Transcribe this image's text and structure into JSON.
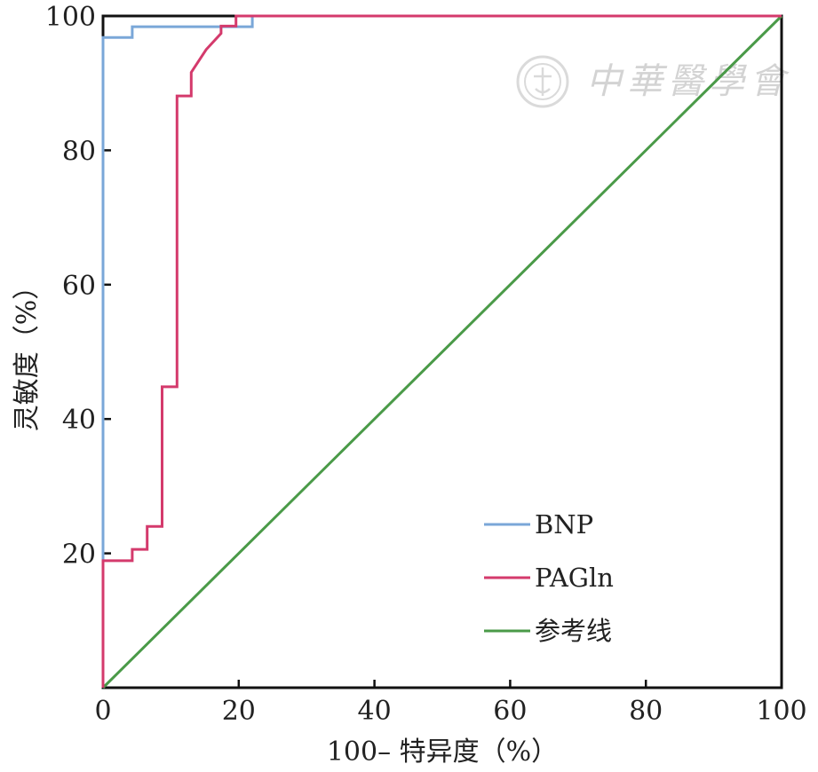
{
  "chart_data": {
    "type": "line",
    "title": "",
    "xlabel": "100– 特异度（%）",
    "ylabel": "灵敏度（%）",
    "xlim": [
      0,
      100
    ],
    "ylim": [
      0,
      100
    ],
    "x_ticks": [
      "0",
      "20",
      "40",
      "60",
      "80",
      "100"
    ],
    "y_ticks": [
      "20",
      "40",
      "60",
      "80",
      "100"
    ],
    "grid": false,
    "legend_position": "bottom-right",
    "series": [
      {
        "name": "BNP",
        "color": "#7aa7d8",
        "x": [
          0,
          0,
          0,
          4.3,
          4.3,
          22,
          22,
          100
        ],
        "y": [
          0,
          84.5,
          96.8,
          96.8,
          98.4,
          98.4,
          100,
          100
        ]
      },
      {
        "name": "PAGln",
        "color": "#d43a6c",
        "x": [
          0,
          0,
          4.3,
          4.3,
          6.5,
          6.5,
          8.7,
          8.7,
          10.9,
          10.9,
          13,
          13,
          15.2,
          17.4,
          17.4,
          19.6,
          19.6,
          100
        ],
        "y": [
          0,
          18.9,
          18.9,
          20.6,
          20.6,
          24,
          24,
          44.8,
          44.8,
          88.1,
          88.1,
          91.6,
          95,
          97.4,
          98.5,
          98.5,
          100,
          100
        ]
      },
      {
        "name": "参考线",
        "color": "#4a9a48",
        "x": [
          0,
          100
        ],
        "y": [
          0,
          100
        ]
      }
    ]
  },
  "watermark": {
    "text": "中華醫學會",
    "emblem": "chinese-medical-association-seal"
  }
}
